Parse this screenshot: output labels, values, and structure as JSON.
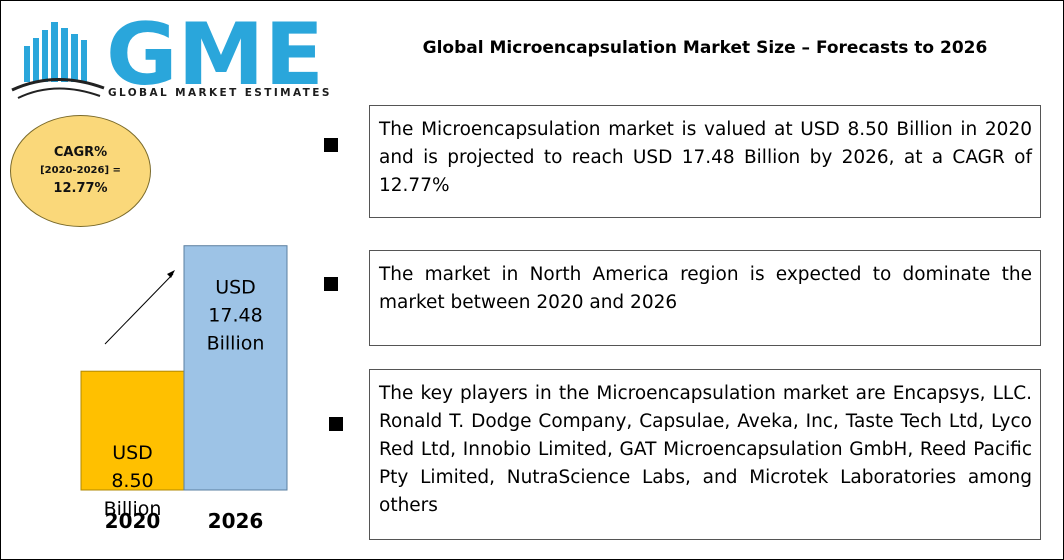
{
  "logo": {
    "brand": "GME",
    "tagline": "GLOBAL MARKET ESTIMATES"
  },
  "title": "Global Microencapsulation  Market Size – Forecasts to 2026",
  "cagr": {
    "label": "CAGR%",
    "period": "[2020-2026] =",
    "value": "12.77%"
  },
  "info": [
    "The Microencapsulation market is valued at USD 8.50 Billion in 2020 and is projected to reach USD 17.48 Billion by 2026, at a CAGR of 12.77%",
    "The market in North America region is expected to dominate the market between 2020 and 2026",
    "The key players in the Microencapsulation market are Encapsys, LLC. Ronald T. Dodge Company,  Capsulae, Aveka, Inc, Taste Tech Ltd, Lyco Red Ltd, Innobio Limited, GAT Microencapsulation GmbH, Reed Pacific Pty Limited, NutraScience Labs, and Microtek Laboratories among others"
  ],
  "colors": {
    "brand_blue": "#2aa6db",
    "bar_2020": "#ffc000",
    "bar_2026": "#9dc3e6",
    "bubble": "#fad87a"
  },
  "chart_data": {
    "type": "bar",
    "title": "",
    "xlabel": "",
    "ylabel": "",
    "categories": [
      "2020",
      "2026"
    ],
    "values": [
      8.5,
      17.48
    ],
    "value_labels": [
      [
        "USD",
        "8.50",
        "Billion"
      ],
      [
        "USD",
        "17.48",
        "Billion"
      ]
    ],
    "ylim": [
      0,
      20
    ],
    "grid": false,
    "legend": "none"
  }
}
